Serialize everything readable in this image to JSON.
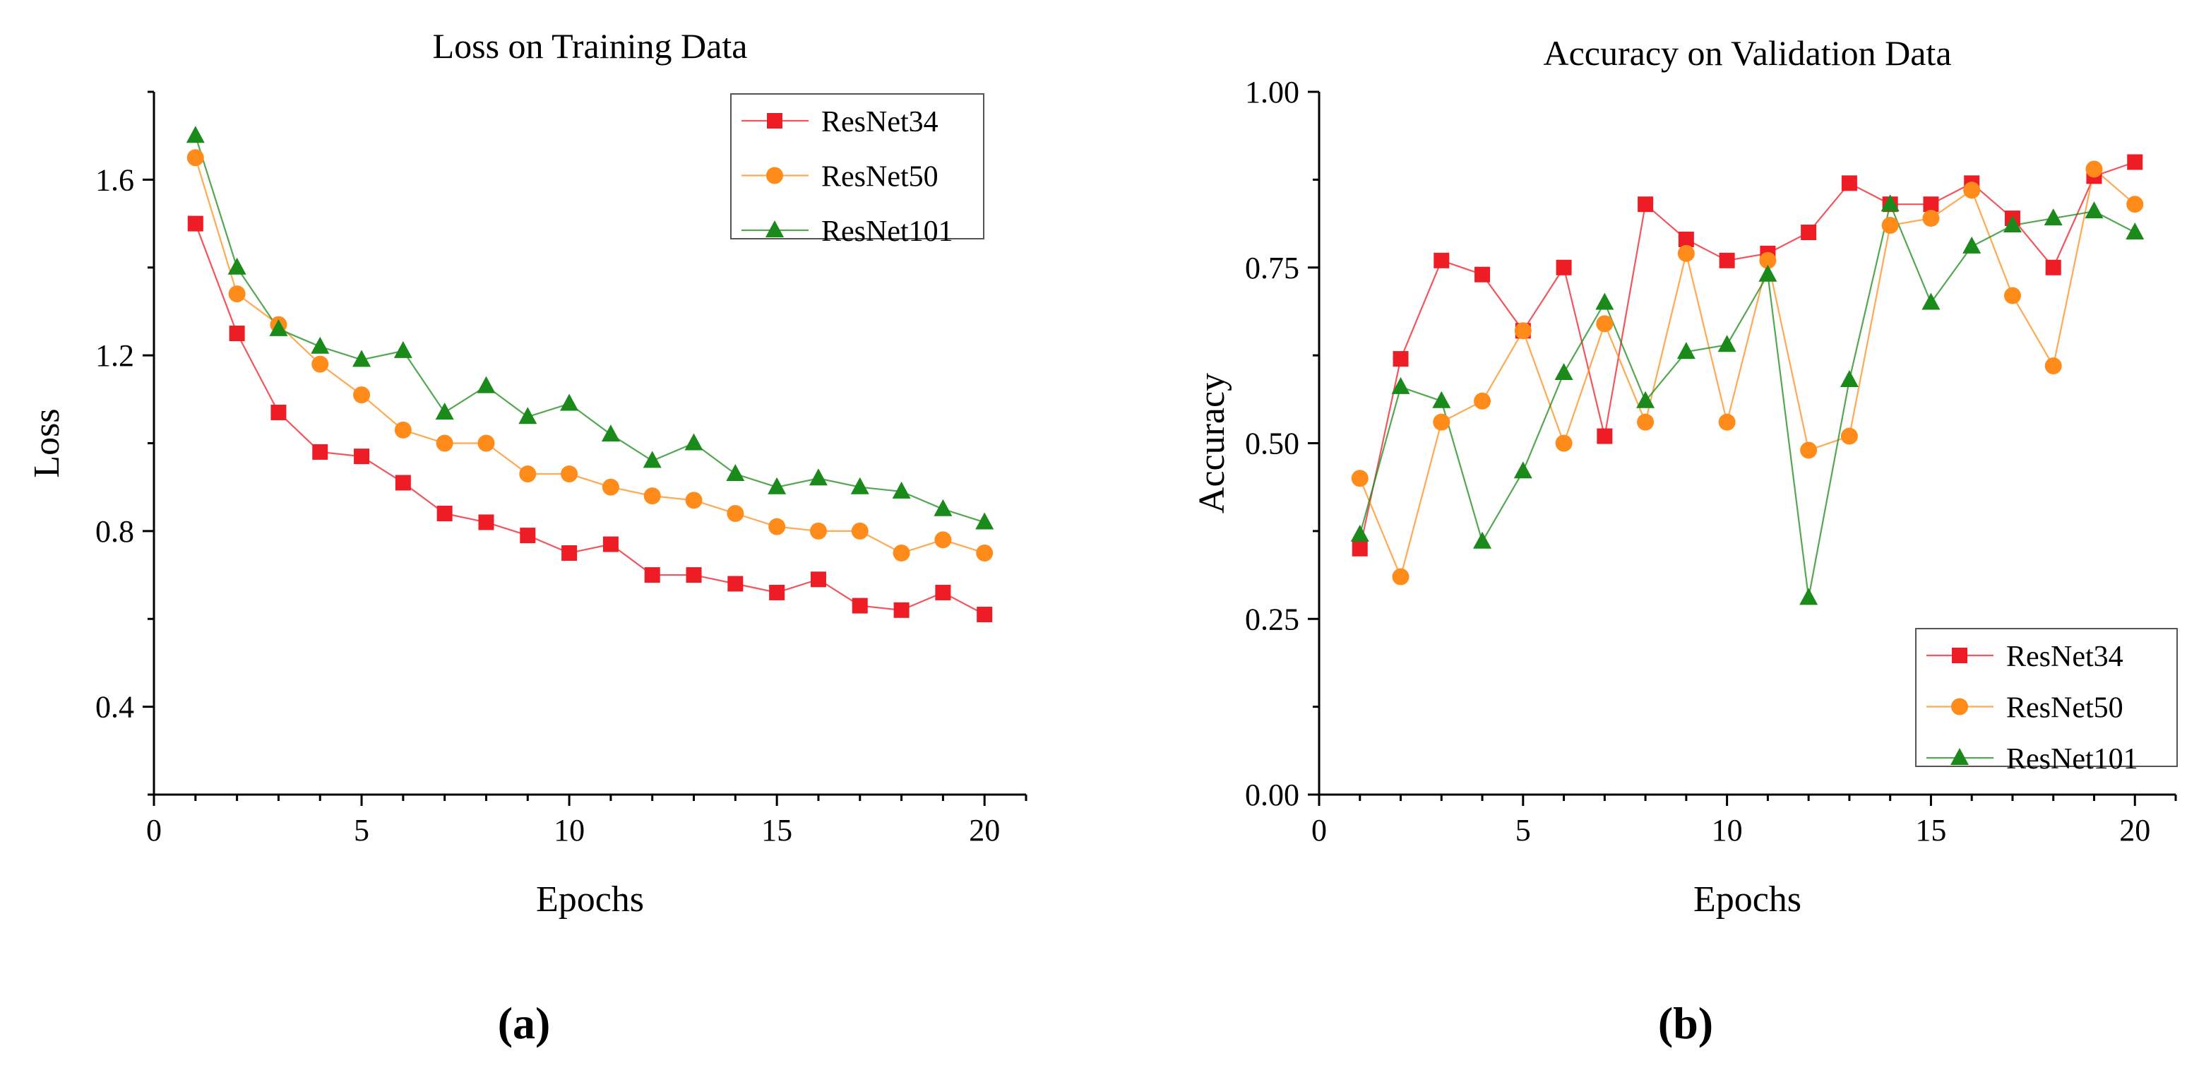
{
  "colors": {
    "ResNet34": "#ee1c24",
    "ResNet50": "#ff8c1a",
    "ResNet101": "#1a8a1a",
    "axis": "#000000"
  },
  "panel_labels": [
    "(a)",
    "(b)"
  ],
  "chart_data": [
    {
      "type": "line",
      "title": "Loss on Training Data",
      "xlabel": "Epochs",
      "ylabel": "Loss",
      "xlim": [
        0,
        21
      ],
      "ylim": [
        0.2,
        1.8
      ],
      "xticks": [
        0,
        5,
        10,
        15,
        20
      ],
      "yticks": [
        0.4,
        0.8,
        1.2,
        1.6
      ],
      "ytick_labels": [
        "0.4",
        "0.8",
        "1.2",
        "1.6"
      ],
      "legend_position": "top-right",
      "x": [
        1,
        2,
        3,
        4,
        5,
        6,
        7,
        8,
        9,
        10,
        11,
        12,
        13,
        14,
        15,
        16,
        17,
        18,
        19,
        20
      ],
      "series": [
        {
          "name": "ResNet34",
          "marker": "square",
          "values": [
            1.5,
            1.25,
            1.07,
            0.98,
            0.97,
            0.91,
            0.84,
            0.82,
            0.79,
            0.75,
            0.77,
            0.7,
            0.7,
            0.68,
            0.66,
            0.69,
            0.63,
            0.62,
            0.66,
            0.61
          ]
        },
        {
          "name": "ResNet50",
          "marker": "circle",
          "values": [
            1.65,
            1.34,
            1.27,
            1.18,
            1.11,
            1.03,
            1.0,
            1.0,
            0.93,
            0.93,
            0.9,
            0.88,
            0.87,
            0.84,
            0.81,
            0.8,
            0.8,
            0.75,
            0.78,
            0.75
          ]
        },
        {
          "name": "ResNet101",
          "marker": "triangle",
          "values": [
            1.7,
            1.4,
            1.26,
            1.22,
            1.19,
            1.21,
            1.07,
            1.13,
            1.06,
            1.09,
            1.02,
            0.96,
            1.0,
            0.93,
            0.9,
            0.92,
            0.9,
            0.89,
            0.85,
            0.82
          ]
        }
      ]
    },
    {
      "type": "line",
      "title": "Accuracy on Validation Data",
      "xlabel": "Epochs",
      "ylabel": "Accuracy",
      "xlim": [
        0,
        21
      ],
      "ylim": [
        0,
        1
      ],
      "xticks": [
        0,
        5,
        10,
        15,
        20
      ],
      "yticks": [
        0,
        0.25,
        0.5,
        0.75,
        1
      ],
      "ytick_labels": [
        "0.00",
        "0.25",
        "0.50",
        "0.75",
        "1.00"
      ],
      "legend_position": "bottom-right",
      "x": [
        1,
        2,
        3,
        4,
        5,
        6,
        7,
        8,
        9,
        10,
        11,
        12,
        13,
        14,
        15,
        16,
        17,
        18,
        19,
        20
      ],
      "series": [
        {
          "name": "ResNet34",
          "marker": "square",
          "values": [
            0.35,
            0.62,
            0.76,
            0.74,
            0.66,
            0.75,
            0.51,
            0.84,
            0.79,
            0.76,
            0.77,
            0.8,
            0.87,
            0.84,
            0.84,
            0.87,
            0.82,
            0.75,
            0.88,
            0.9
          ]
        },
        {
          "name": "ResNet50",
          "marker": "circle",
          "values": [
            0.45,
            0.31,
            0.53,
            0.56,
            0.66,
            0.5,
            0.67,
            0.53,
            0.77,
            0.53,
            0.76,
            0.49,
            0.51,
            0.81,
            0.82,
            0.86,
            0.71,
            0.61,
            0.89,
            0.84
          ]
        },
        {
          "name": "ResNet101",
          "marker": "triangle",
          "values": [
            0.37,
            0.58,
            0.56,
            0.36,
            0.46,
            0.6,
            0.7,
            0.56,
            0.63,
            0.64,
            0.74,
            0.28,
            0.59,
            0.84,
            0.7,
            0.78,
            0.81,
            0.82,
            0.83,
            0.8
          ]
        }
      ]
    }
  ]
}
